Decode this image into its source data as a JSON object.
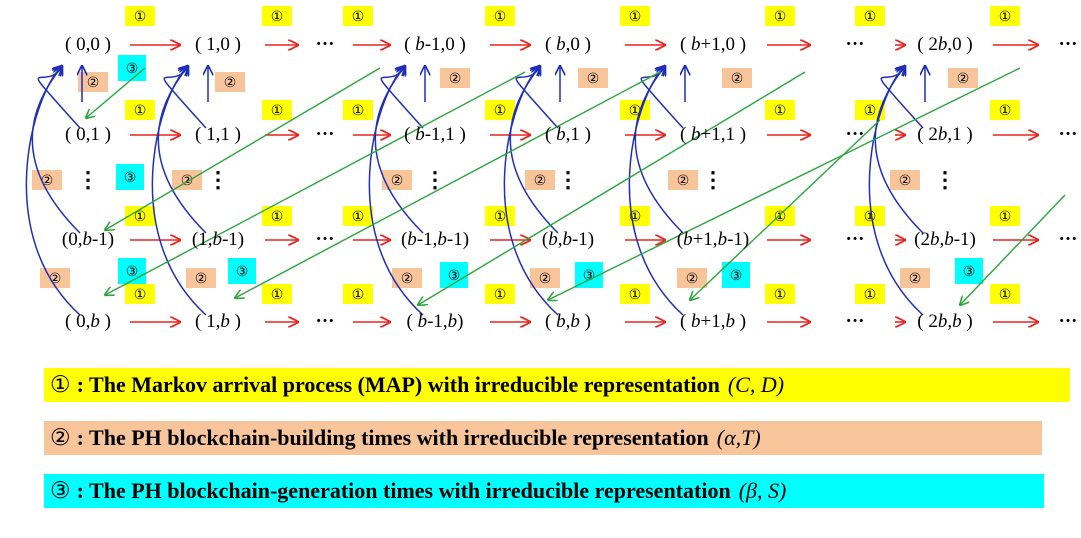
{
  "colors": {
    "arrival_badge": "#ffff00",
    "building_badge": "#f8c49a",
    "generation_badge": "#00ffff",
    "arrival_arrow": "#e8251c",
    "building_arrow": "#1f2fb8",
    "generation_arrow": "#2aa63a"
  },
  "badges": {
    "one": "①",
    "two": "②",
    "three": "③"
  },
  "rows": [
    [
      "( 0,0 )",
      "( 1,0 )",
      "···",
      "( b-1,0 )",
      "( b,0 )",
      "( b+1,0 )",
      "···",
      "( 2b,0 )",
      "···"
    ],
    [
      "( 0,1 )",
      "( 1,1 )",
      "···",
      "( b-1,1 )",
      "( b,1 )",
      "( b+1,1 )",
      "···",
      "( 2b,1 )",
      "···"
    ],
    [
      "⋮",
      "⋮",
      "",
      "⋮",
      "⋮",
      "⋮",
      "",
      "⋮",
      ""
    ],
    [
      "(0,b-1)",
      "(1,b-1)",
      "···",
      "(b-1,b-1)",
      "(b,b-1)",
      "(b+1,b-1)",
      "···",
      "(2b,b-1)",
      "···"
    ],
    [
      "( 0,b )",
      "( 1,b )",
      "···",
      "( b-1,b)",
      "( b,b )",
      "( b+1,b )",
      "···",
      "( 2b,b )",
      "···"
    ]
  ],
  "legend": [
    {
      "symbol": "①",
      "text": ": The Markov arrival process (MAP) with irreducible representation",
      "rep": "(C, D)"
    },
    {
      "symbol": "②",
      "text": ": The PH blockchain-building times with irreducible representation",
      "rep": "(α,T)"
    },
    {
      "symbol": "③",
      "text": ": The PH blockchain-generation times with irreducible representation",
      "rep": "(β, S)"
    }
  ]
}
